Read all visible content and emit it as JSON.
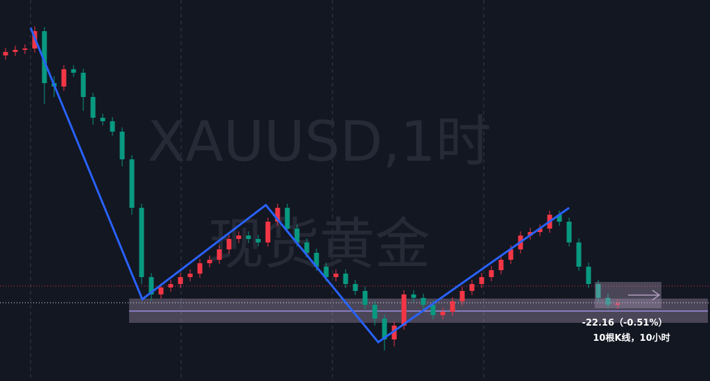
{
  "chart_data": {
    "type": "candlestick",
    "open": [
      4535,
      4537.5,
      4539,
      4540,
      4552.5,
      4515,
      4512.5,
      4525,
      4522.5,
      4505,
      4490,
      4487.5,
      4480,
      4460,
      4425,
      4375,
      4362.5,
      4367.5,
      4370,
      4375,
      4377.5,
      4385,
      4387.5,
      4395,
      4402.5,
      4405,
      4402.5,
      4400,
      4415,
      4425,
      4410,
      4400,
      4392.5,
      4382.5,
      4375,
      4377.5,
      4370,
      4365,
      4355,
      4345,
      4330,
      4340,
      4362.5,
      4360,
      4355,
      4347.5,
      4350,
      4357.5,
      4365,
      4370,
      4375,
      4380,
      4387.5,
      4395,
      4405,
      4407.5,
      4410,
      4420,
      4415,
      4400,
      4382.5,
      4370,
      4360,
      4355
    ],
    "high": [
      4540.5,
      4542,
      4543,
      4556,
      4555.5,
      4520,
      4528,
      4528,
      4525.5,
      4508,
      4493,
      4490.5,
      4483,
      4463,
      4428,
      4378,
      4370.5,
      4373,
      4378,
      4380.5,
      4388,
      4390.5,
      4398,
      4405.5,
      4408,
      4408,
      4405.5,
      4418,
      4428,
      4428,
      4413,
      4403,
      4395.5,
      4385.5,
      4380.5,
      4380.5,
      4373,
      4368,
      4358,
      4348,
      4343,
      4365.5,
      4365.5,
      4363,
      4358,
      4353,
      4360.5,
      4368,
      4373,
      4378,
      4383,
      4390.5,
      4398,
      4408,
      4410.5,
      4413,
      4423,
      4423,
      4418,
      4403,
      4385.5,
      4373,
      4363,
      4359
    ],
    "low": [
      4532,
      4534.5,
      4536,
      4537,
      4500,
      4505,
      4509.5,
      4519.5,
      4495,
      4485,
      4484.5,
      4477,
      4455,
      4420,
      4370,
      4358,
      4359.5,
      4364.5,
      4367,
      4372,
      4374.5,
      4382,
      4384.5,
      4392,
      4399.5,
      4399.5,
      4397,
      4397,
      4412,
      4407,
      4397,
      4389.5,
      4379.5,
      4372,
      4372,
      4367,
      4362,
      4352,
      4340,
      4322,
      4325,
      4337,
      4357,
      4352,
      4344.5,
      4344.5,
      4347,
      4354.5,
      4362,
      4367,
      4372,
      4377,
      4384.5,
      4392,
      4402,
      4404.5,
      4407,
      4412,
      4397,
      4379.5,
      4367,
      4357,
      4352,
      4352
    ],
    "close": [
      4537.5,
      4539,
      4540,
      4552.5,
      4515,
      4512.5,
      4525,
      4522.5,
      4505,
      4490,
      4487.5,
      4480,
      4460,
      4425,
      4375,
      4362.5,
      4367.5,
      4370,
      4375,
      4377.5,
      4385,
      4387.5,
      4395,
      4402.5,
      4405,
      4402.5,
      4400,
      4415,
      4425,
      4410,
      4400,
      4392.5,
      4382.5,
      4375,
      4377.5,
      4370,
      4365,
      4355,
      4345,
      4330,
      4340,
      4362.5,
      4360,
      4355,
      4347.5,
      4350,
      4357.5,
      4365,
      4370,
      4375,
      4380,
      4387.5,
      4395,
      4405,
      4407.5,
      4410,
      4420,
      4415,
      4400,
      4382.5,
      4370,
      4360,
      4355,
      4356
    ],
    "ylim": [
      4300,
      4575
    ],
    "up_color": "#f23645",
    "down_color": "#089981"
  },
  "watermark": {
    "symbol": "XAUUSD,1时",
    "name": "现货黄金"
  },
  "measurement": {
    "change": "-22.16（-0.51%）",
    "bars": "10根K线，10小时"
  }
}
